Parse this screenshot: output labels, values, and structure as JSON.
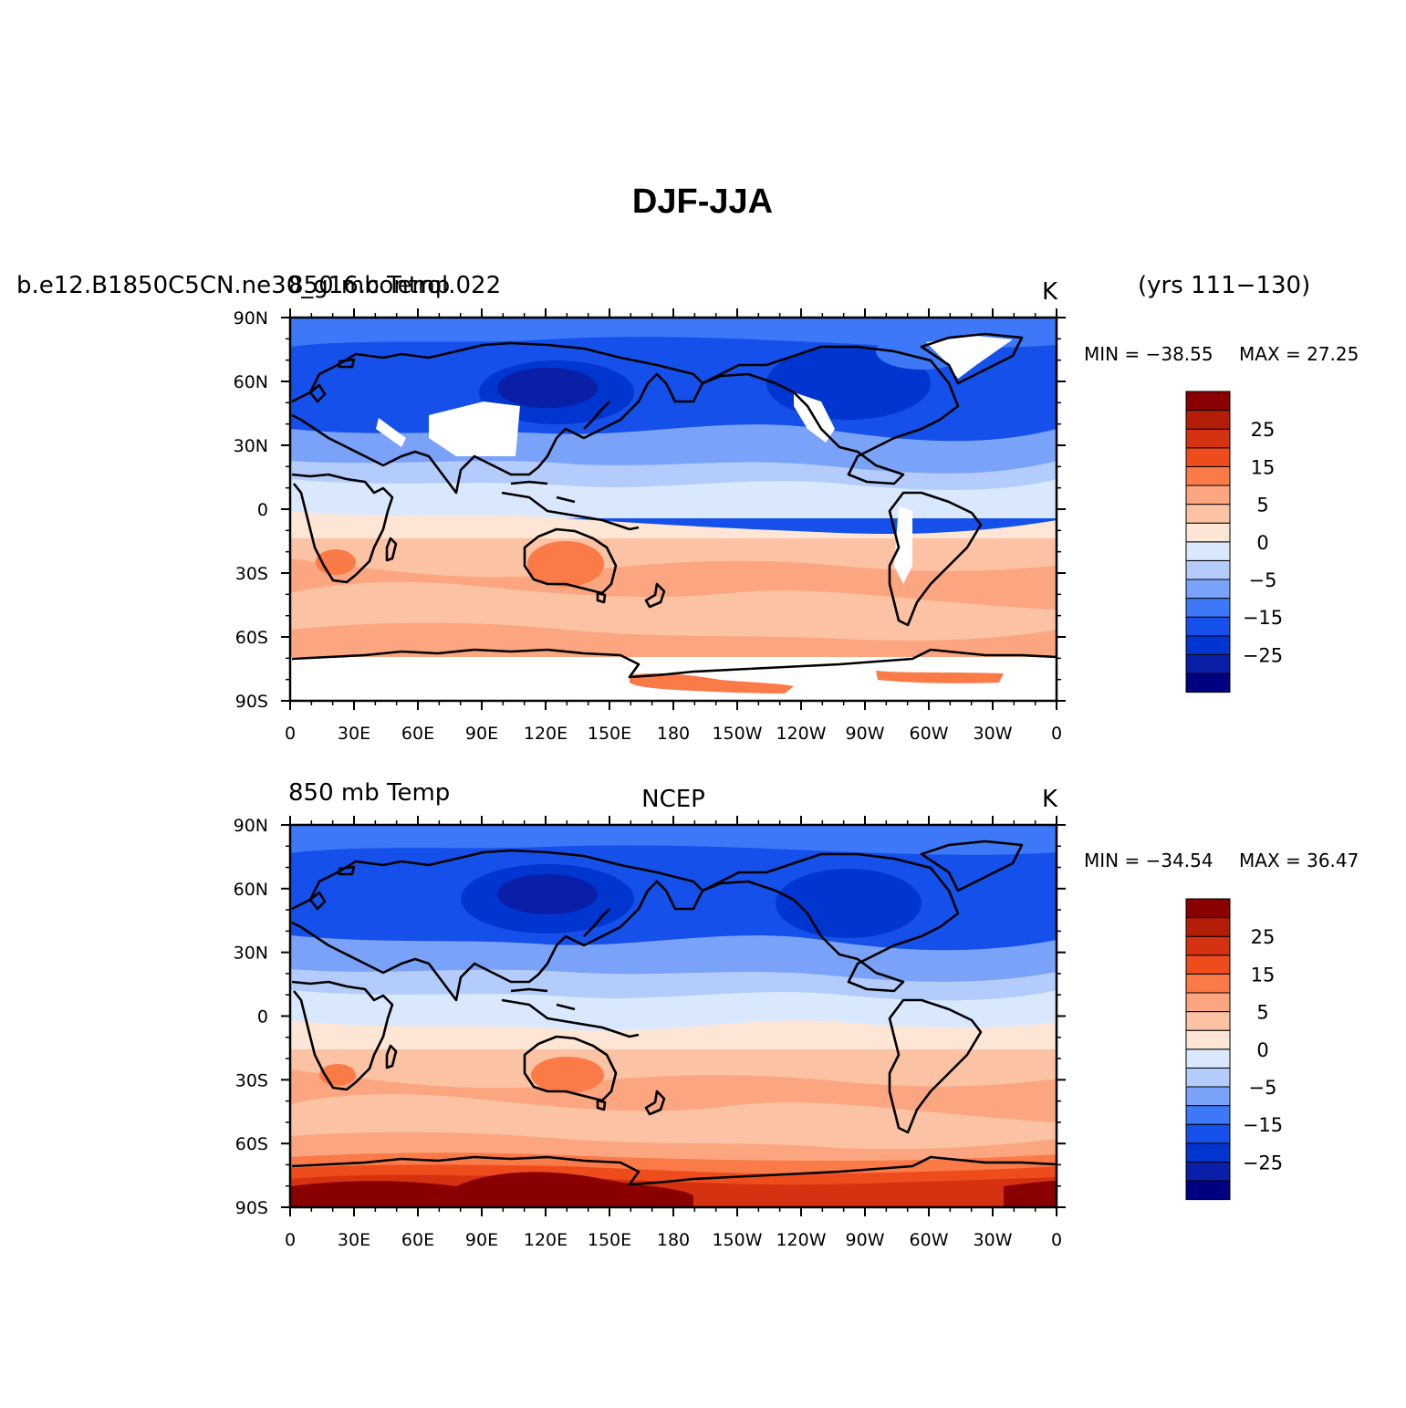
{
  "title": "DJF-JJA",
  "colorbar": {
    "colors": [
      "#000080",
      "#0a1fa8",
      "#0035d0",
      "#1550ea",
      "#3c78f7",
      "#7aa2f9",
      "#b3ccfb",
      "#dae8fd",
      "#fde6d6",
      "#fcc2a4",
      "#fba680",
      "#fa7a48",
      "#ef4c1e",
      "#d43210",
      "#b41e06",
      "#8a0000"
    ],
    "labels": [
      "25",
      "15",
      "5",
      "0",
      "−5",
      "−15",
      "−25"
    ]
  },
  "panels": [
    {
      "name": "model",
      "left": "b.e12.B1850C5CN.ne30_g16.control.022",
      "left_overlay": "850 mb Temp",
      "center": "",
      "units": "K",
      "years": "(yrs 111−130)",
      "min_text": "MIN = −38.55",
      "max_text": "MAX = 27.25",
      "min": -38.55,
      "max": 27.25,
      "lat_ticks": [
        "90N",
        "60N",
        "30N",
        "0",
        "30S",
        "60S",
        "90S"
      ],
      "lon_ticks": [
        "0",
        "30E",
        "60E",
        "90E",
        "120E",
        "150E",
        "180",
        "150W",
        "120W",
        "90W",
        "60W",
        "30W",
        "0"
      ]
    },
    {
      "name": "ncep",
      "left": "850 mb Temp",
      "left_overlay": "",
      "center": "NCEP",
      "units": "K",
      "years": "",
      "min_text": "MIN = −34.54",
      "max_text": "MAX = 36.47",
      "min": -34.54,
      "max": 36.47,
      "lat_ticks": [
        "90N",
        "60N",
        "30N",
        "0",
        "30S",
        "60S",
        "90S"
      ],
      "lon_ticks": [
        "0",
        "30E",
        "60E",
        "90E",
        "120E",
        "150E",
        "180",
        "150W",
        "120W",
        "90W",
        "60W",
        "30W",
        "0"
      ]
    }
  ]
}
